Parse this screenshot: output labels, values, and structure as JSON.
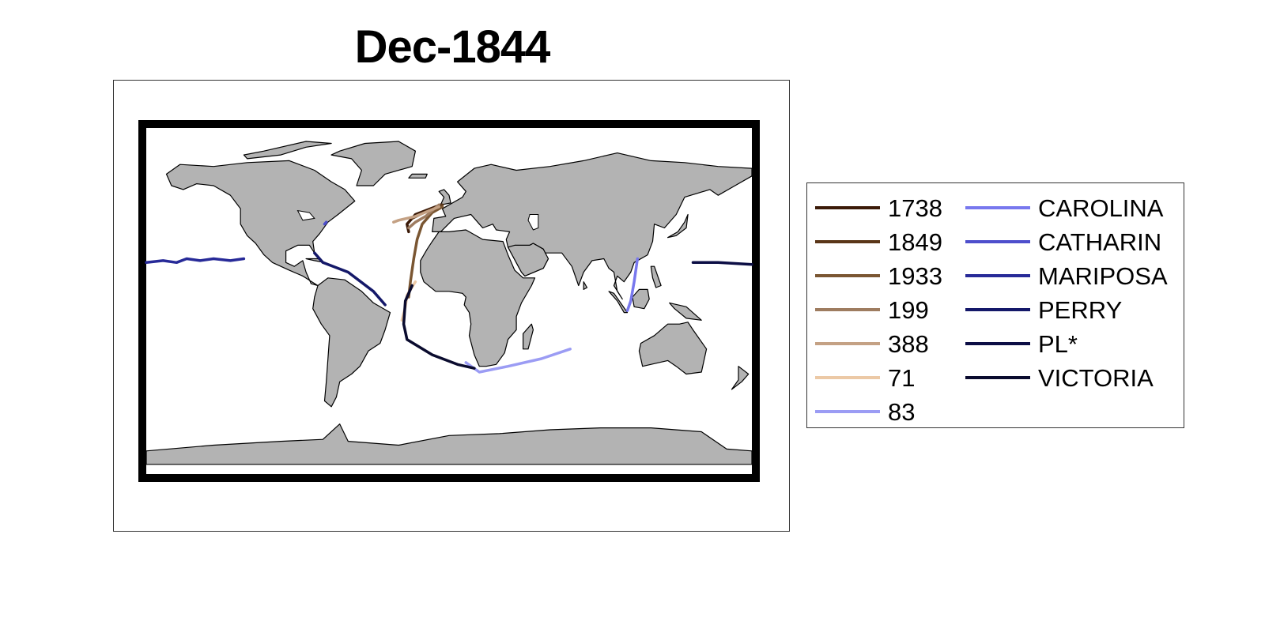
{
  "title": "Dec-1844",
  "map": {
    "projection": "equirectangular",
    "land_color": "#b3b3b3",
    "coast_color": "#000000",
    "frame_color": "#000000"
  },
  "legend": {
    "items": [
      {
        "label": "1738",
        "color": "#3b1a08"
      },
      {
        "label": "1849",
        "color": "#5a3618"
      },
      {
        "label": "1933",
        "color": "#7a5632"
      },
      {
        "label": "199",
        "color": "#9e7c60"
      },
      {
        "label": "388",
        "color": "#c4a184"
      },
      {
        "label": "71",
        "color": "#ecc9a6"
      },
      {
        "label": "83",
        "color": "#9b9cf4"
      },
      {
        "label": "CAROLINA",
        "color": "#7878ee"
      },
      {
        "label": "CATHARIN",
        "color": "#4e4fcc"
      },
      {
        "label": "MARIPOSA",
        "color": "#272a98"
      },
      {
        "label": "PERRY",
        "color": "#141869"
      },
      {
        "label": "PL*",
        "color": "#0c0e45"
      },
      {
        "label": "VICTORIA",
        "color": "#0a0b2e"
      }
    ]
  },
  "chart_data": {
    "type": "map",
    "title": "Dec-1844",
    "xlim": [
      -180,
      180
    ],
    "ylim": [
      -90,
      90
    ],
    "grid": false,
    "legend_position": "right",
    "series": [
      {
        "name": "1738",
        "color": "#3b1a08",
        "points": [
          [
            -5,
            50
          ],
          [
            -20,
            45
          ],
          [
            -25,
            40
          ],
          [
            -24,
            36
          ]
        ]
      },
      {
        "name": "1849",
        "color": "#5a3618",
        "points": [
          [
            -4,
            50
          ],
          [
            -15,
            46
          ],
          [
            -22,
            43
          ]
        ]
      },
      {
        "name": "1933",
        "color": "#7a5632",
        "points": [
          [
            -4,
            49
          ],
          [
            -10,
            46
          ],
          [
            -16,
            40
          ],
          [
            -19,
            32
          ],
          [
            -21,
            22
          ],
          [
            -23,
            10
          ],
          [
            -24,
            2
          ]
        ]
      },
      {
        "name": "199",
        "color": "#9e7c60",
        "points": [
          [
            -6,
            50
          ],
          [
            -14,
            44
          ],
          [
            -20,
            41
          ],
          [
            -24,
            38
          ]
        ]
      },
      {
        "name": "388",
        "color": "#c4a184",
        "points": [
          [
            -6,
            49
          ],
          [
            -20,
            44
          ],
          [
            -30,
            42
          ],
          [
            -33,
            41
          ]
        ]
      },
      {
        "name": "71",
        "color": "#ecc9a6",
        "points": [
          [
            -20,
            10
          ],
          [
            -25,
            3
          ],
          [
            -26,
            -3
          ],
          [
            -28,
            -10
          ]
        ]
      },
      {
        "name": "83",
        "color": "#9b9cf4",
        "points": [
          [
            10,
            -32
          ],
          [
            18,
            -37
          ],
          [
            35,
            -34
          ],
          [
            55,
            -30
          ],
          [
            72,
            -25
          ]
        ]
      },
      {
        "name": "CAROLINA",
        "color": "#7878ee",
        "points": [
          [
            112,
            22
          ],
          [
            110,
            10
          ],
          [
            108,
            0
          ],
          [
            106,
            -5
          ]
        ]
      },
      {
        "name": "CATHARIN",
        "color": "#4e4fcc",
        "points": [
          [
            -74,
            40
          ],
          [
            -73,
            41
          ]
        ]
      },
      {
        "name": "MARIPOSA",
        "color": "#272a98",
        "points": [
          [
            -180,
            20
          ],
          [
            -170,
            21
          ],
          [
            -162,
            20
          ],
          [
            -156,
            22
          ],
          [
            -148,
            21
          ],
          [
            -140,
            22
          ],
          [
            -130,
            21
          ],
          [
            -122,
            22
          ]
        ]
      },
      {
        "name": "PERRY",
        "color": "#141869",
        "points": [
          [
            -80,
            25
          ],
          [
            -75,
            20
          ],
          [
            -60,
            15
          ],
          [
            -45,
            5
          ],
          [
            -38,
            -2
          ]
        ]
      },
      {
        "name": "PL*",
        "color": "#0c0e45",
        "points": [
          [
            145,
            20
          ],
          [
            160,
            20
          ],
          [
            180,
            19
          ]
        ]
      },
      {
        "name": "VICTORIA",
        "color": "#0a0b2e",
        "points": [
          [
            -22,
            8
          ],
          [
            -26,
            0
          ],
          [
            -27,
            -12
          ],
          [
            -25,
            -20
          ],
          [
            -10,
            -28
          ],
          [
            5,
            -33
          ],
          [
            15,
            -35
          ]
        ]
      }
    ]
  }
}
